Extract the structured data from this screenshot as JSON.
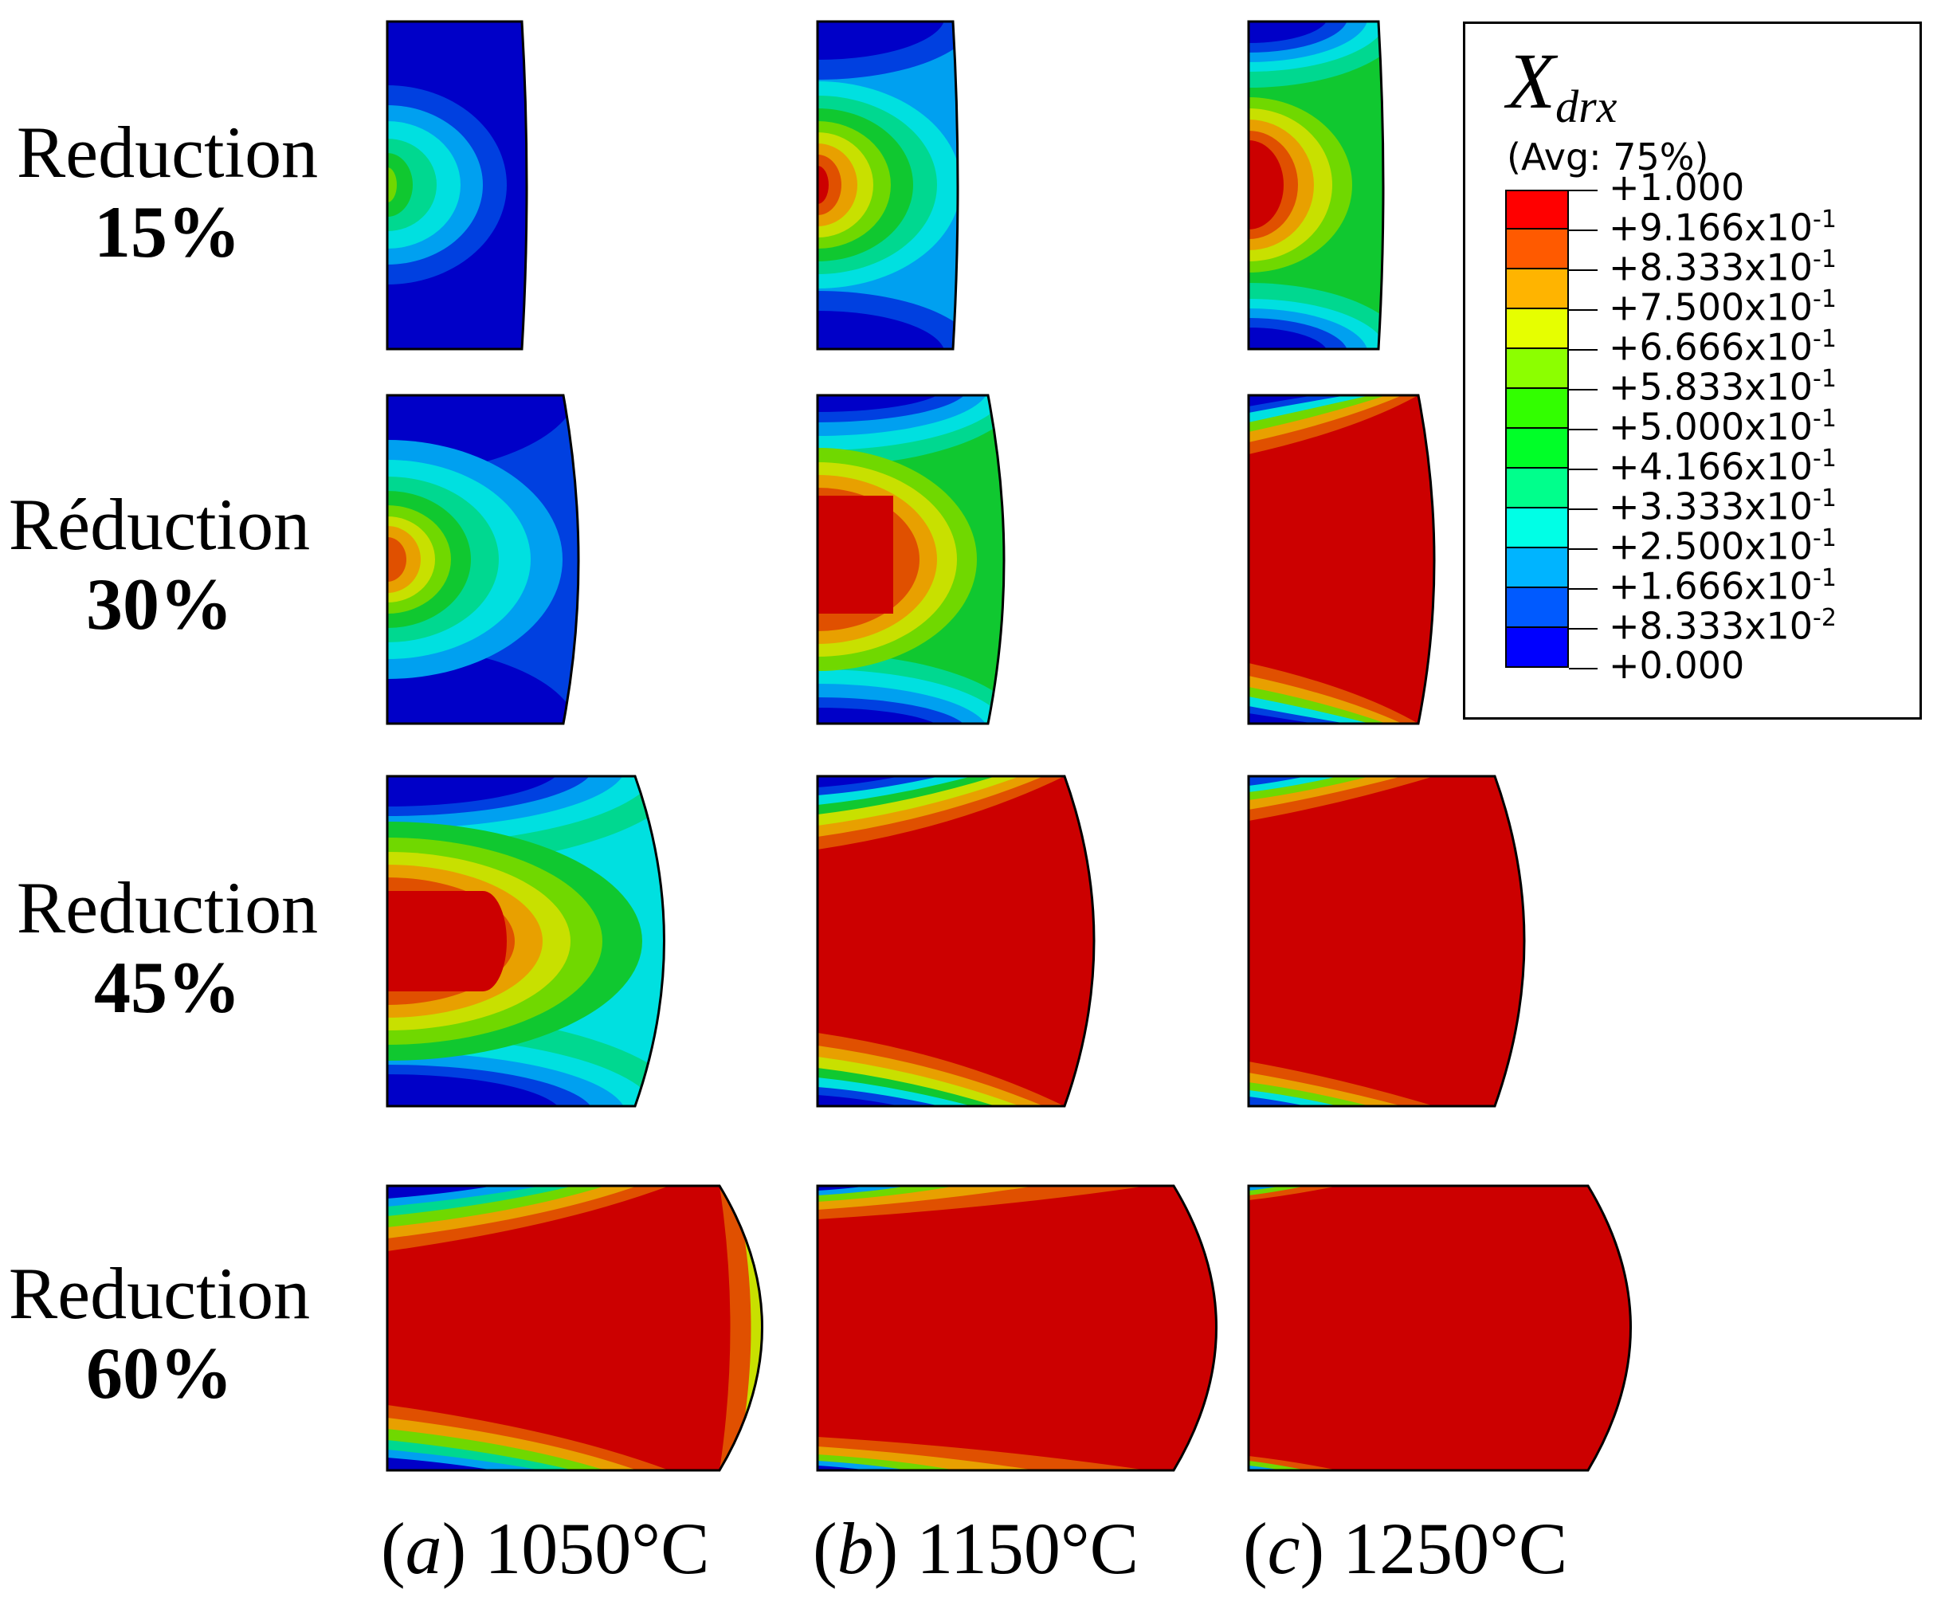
{
  "row_labels": [
    {
      "word": "Reduction",
      "percent": "15%"
    },
    {
      "word": "Réduction",
      "percent": "30%"
    },
    {
      "word": "Reduction",
      "percent": "45%"
    },
    {
      "word": "Reduction",
      "percent": "60%"
    }
  ],
  "column_labels": [
    {
      "letter": "a",
      "temp": "1050°C"
    },
    {
      "letter": "b",
      "temp": "1150°C"
    },
    {
      "letter": "c",
      "temp": "1250°C"
    }
  ],
  "legend": {
    "variable": "X",
    "subscript": "drx",
    "average": "(Avg: 75%)",
    "values": [
      "+1.000",
      "+9.166x10",
      "+8.333x10",
      "+7.500x10",
      "+6.666x10",
      "+5.833x10",
      "+5.000x10",
      "+4.166x10",
      "+3.333x10",
      "+2.500x10",
      "+1.666x10",
      "+8.333x10",
      "+0.000"
    ],
    "exponents": [
      "",
      "-1",
      "-1",
      "-1",
      "-1",
      "-1",
      "-1",
      "-1",
      "-1",
      "-1",
      "-1",
      "-2",
      ""
    ],
    "colors": [
      "#ff0000",
      "#ff5a00",
      "#ffb400",
      "#e6ff00",
      "#8cff00",
      "#32ff00",
      "#00ff28",
      "#00ff8c",
      "#00ffe6",
      "#00b4ff",
      "#005aff",
      "#0000ff"
    ]
  },
  "contour_colors": {
    "level_0": "#0000c8",
    "level_1": "#0040e0",
    "level_2": "#00a0f0",
    "level_3": "#00e0e0",
    "level_4": "#00d890",
    "level_5": "#10c830",
    "level_6": "#70d800",
    "level_7": "#c8e000",
    "level_8": "#e8a000",
    "level_9": "#e05000",
    "level_10": "#cc0000"
  }
}
